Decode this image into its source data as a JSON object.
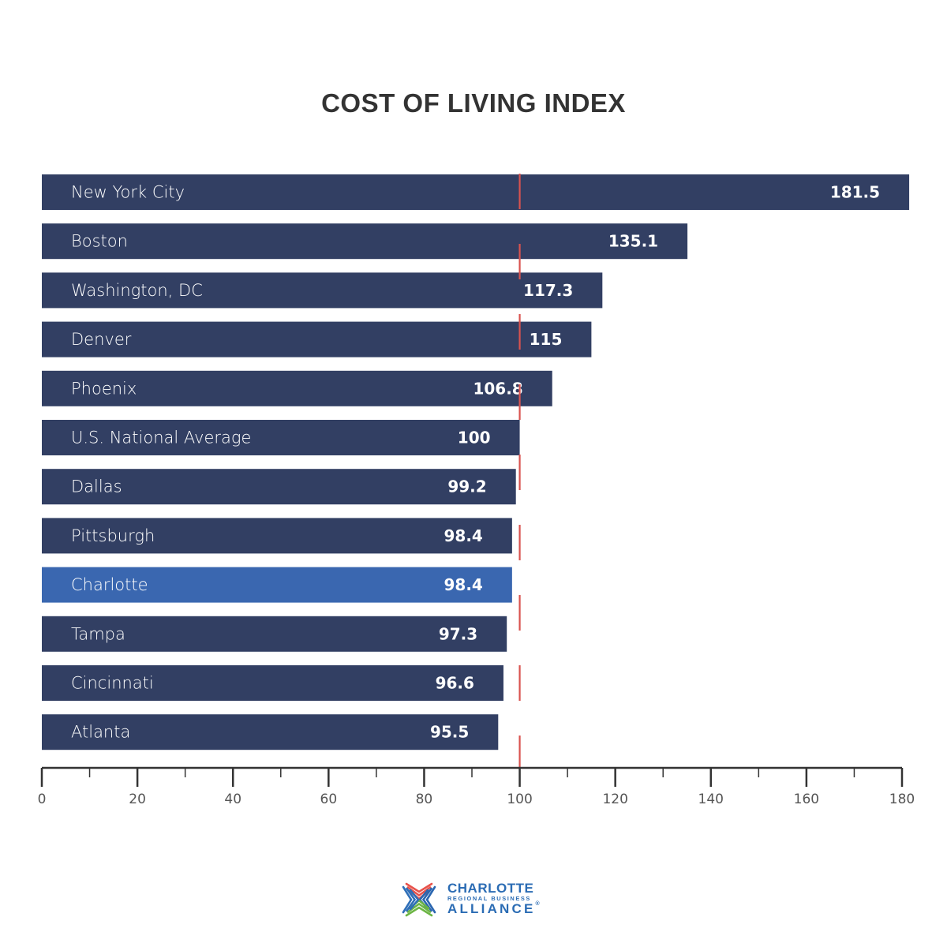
{
  "chart_data": {
    "type": "bar",
    "orientation": "horizontal",
    "title": "COST OF LIVING INDEX",
    "xlabel": "",
    "ylabel": "",
    "xlim": [
      0,
      180
    ],
    "x_ticks": [
      0,
      20,
      40,
      60,
      80,
      100,
      120,
      140,
      160,
      180
    ],
    "x_minor_step": 10,
    "grid": false,
    "reference_line": {
      "value": 100,
      "style": "dashed",
      "color": "#d9534f"
    },
    "categories": [
      "New York City",
      "Boston",
      "Washington, DC",
      "Denver",
      "Phoenix",
      "U.S. National Average",
      "Dallas",
      "Pittsburgh",
      "Charlotte",
      "Tampa",
      "Cincinnati",
      "Atlanta"
    ],
    "values": [
      181.5,
      135.1,
      117.3,
      115,
      106.8,
      100,
      99.2,
      98.4,
      98.4,
      97.3,
      96.6,
      95.5
    ],
    "value_labels": [
      "181.5",
      "135.1",
      "117.3",
      "115",
      "106.8",
      "100",
      "99.2",
      "98.4",
      "98.4",
      "97.3",
      "96.6",
      "95.5"
    ],
    "highlight": "Charlotte",
    "colors": {
      "bar": "#323f63",
      "highlight": "#3a67b0",
      "axis": "#333333",
      "reference": "#d9534f"
    }
  },
  "logo": {
    "line1": "CHARLOTTE",
    "line2": "REGIONAL BUSINESS",
    "line3": "ALLIANCE",
    "registered": "®",
    "colors": {
      "text": "#2b6cb4",
      "top": "#e8524a",
      "left": "#2f6fb8",
      "right": "#2a66b0",
      "bottom": "#6cb544"
    }
  }
}
